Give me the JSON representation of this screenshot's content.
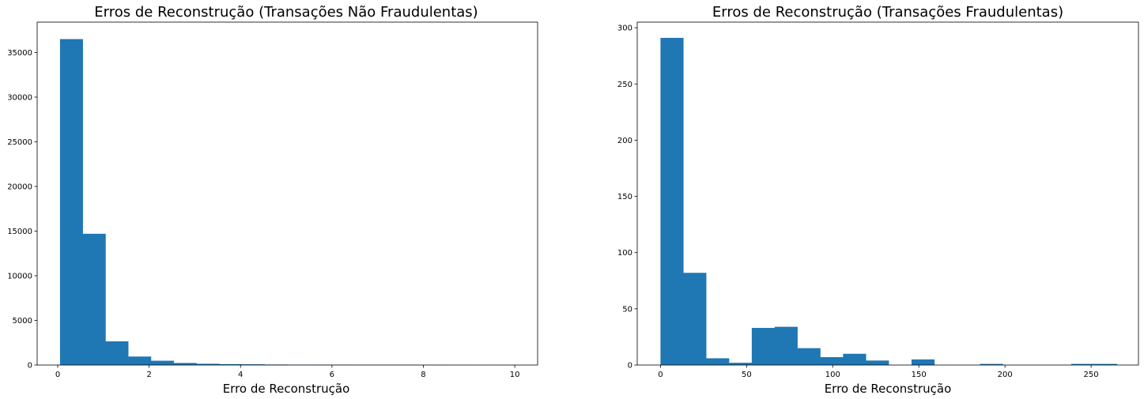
{
  "chart_data": [
    {
      "type": "bar",
      "title": "Erros de Reconstrução (Transações Não Fraudulentas)",
      "xlabel": "Erro de Reconstrução",
      "ylabel": "",
      "color": "#1f77b4",
      "xlim": [
        -0.45,
        10.5
      ],
      "ylim": [
        0,
        38400
      ],
      "xticks": [
        0,
        2,
        4,
        6,
        8,
        10
      ],
      "yticks": [
        0,
        5000,
        10000,
        15000,
        20000,
        25000,
        30000,
        35000
      ],
      "bin_edges": [
        0.05,
        0.547,
        1.045,
        1.542,
        2.04,
        2.537,
        3.035,
        3.532,
        4.03,
        4.527,
        5.025,
        5.522,
        6.02,
        6.517,
        7.015,
        7.512,
        8.01,
        8.507,
        9.005,
        9.502,
        10.0
      ],
      "values": [
        36500,
        14700,
        2650,
        950,
        480,
        230,
        140,
        100,
        80,
        55,
        45,
        35,
        30,
        25,
        20,
        18,
        15,
        12,
        10,
        8
      ],
      "grid": false
    },
    {
      "type": "bar",
      "title": "Erros de Reconstrução (Transações Fraudulentas)",
      "xlabel": "Erro de Reconstrução",
      "ylabel": "",
      "color": "#1f77b4",
      "xlim": [
        -13.5,
        277.5
      ],
      "ylim": [
        0,
        305
      ],
      "xticks": [
        0,
        50,
        100,
        150,
        200,
        250
      ],
      "yticks": [
        0,
        50,
        100,
        150,
        200,
        250,
        300
      ],
      "bin_edges": [
        0,
        13.25,
        26.5,
        39.75,
        53,
        66.25,
        79.5,
        92.75,
        106,
        119.25,
        132.5,
        145.75,
        159,
        172.25,
        185.5,
        198.75,
        212,
        225.25,
        238.5,
        251.75,
        265
      ],
      "values": [
        291,
        82,
        6,
        2,
        33,
        34,
        15,
        7,
        10,
        4,
        0,
        5,
        0,
        0,
        1,
        0,
        0,
        0,
        1,
        1
      ],
      "grid": false
    }
  ]
}
